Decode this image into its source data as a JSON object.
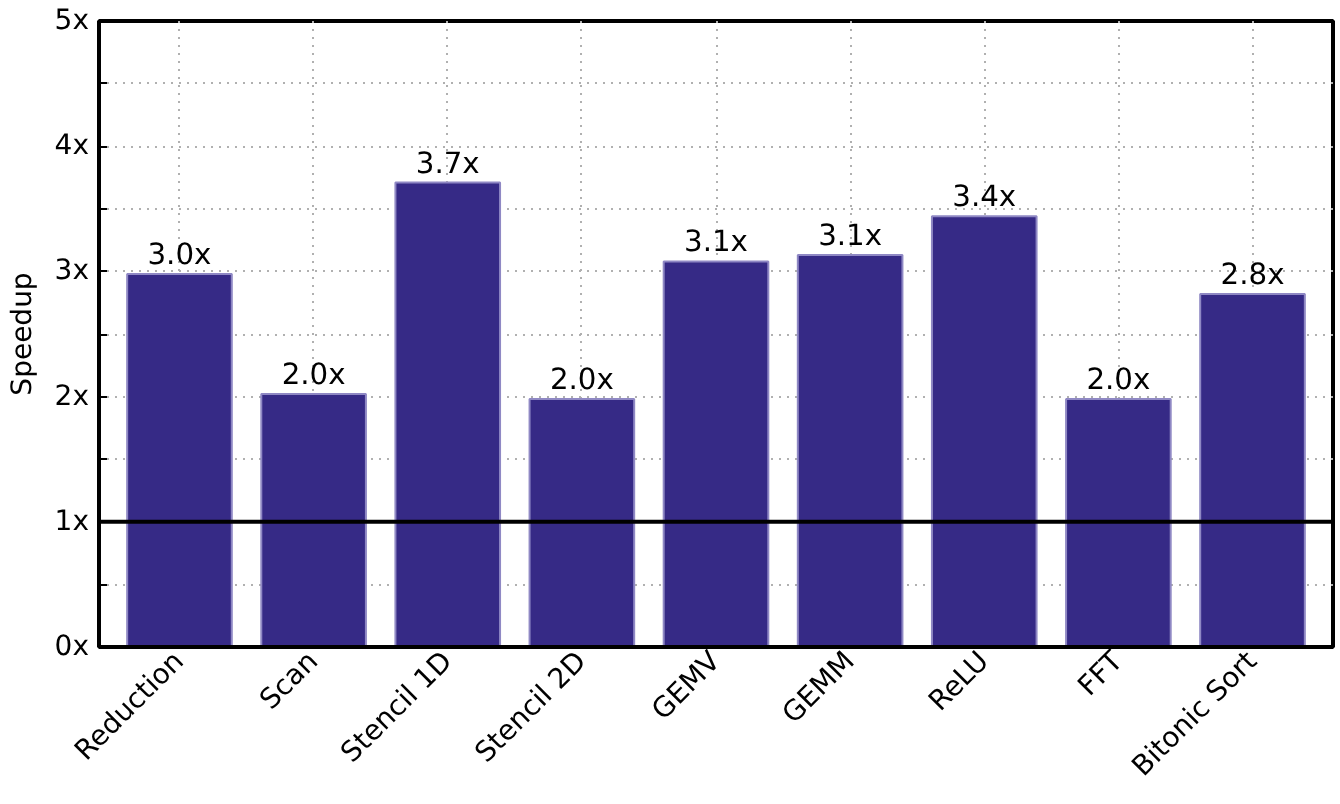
{
  "chart_data": {
    "type": "bar",
    "ylabel": "Speedup",
    "categories": [
      "Reduction",
      "Scan",
      "Stencil 1D",
      "Stencil 2D",
      "GEMV",
      "GEMM",
      "ReLU",
      "FFT",
      "Bitonic Sort"
    ],
    "values": [
      2.98,
      2.02,
      3.71,
      1.98,
      3.08,
      3.13,
      3.44,
      1.98,
      2.82
    ],
    "value_labels": [
      "3.0x",
      "2.0x",
      "3.7x",
      "2.0x",
      "3.1x",
      "3.1x",
      "3.4x",
      "2.0x",
      "2.8x"
    ],
    "color": "#362a86",
    "ylim": [
      0,
      5
    ],
    "yticks": [
      {
        "value": 0,
        "label": "0x"
      },
      {
        "value": 0.5,
        "label": null
      },
      {
        "value": 1,
        "label": "1x"
      },
      {
        "value": 1.5,
        "label": null
      },
      {
        "value": 2,
        "label": "2x"
      },
      {
        "value": 2.5,
        "label": null
      },
      {
        "value": 3,
        "label": "3x"
      },
      {
        "value": 3.5,
        "label": null
      },
      {
        "value": 4,
        "label": "4x"
      },
      {
        "value": 4.5,
        "label": null
      },
      {
        "value": 5,
        "label": "5x"
      }
    ],
    "ref_lines": [
      {
        "axis": "y",
        "value": 1,
        "color": "#000000",
        "line_style": "solid"
      }
    ],
    "grid": true
  }
}
